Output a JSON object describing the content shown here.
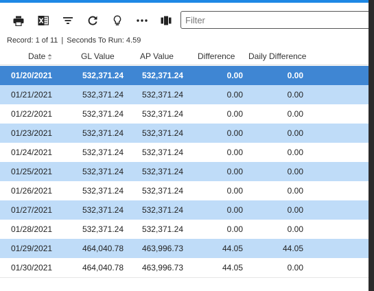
{
  "toolbar": {
    "buttons": [
      {
        "name": "print-button",
        "icon": "printer-icon"
      },
      {
        "name": "export-excel-button",
        "icon": "excel-icon"
      },
      {
        "name": "filter-button",
        "icon": "filter-lines-icon"
      },
      {
        "name": "refresh-button",
        "icon": "refresh-icon"
      },
      {
        "name": "tip-button",
        "icon": "lightbulb-icon"
      },
      {
        "name": "more-button",
        "icon": "more-horizontal-icon"
      },
      {
        "name": "columns-button",
        "icon": "columns-icon"
      }
    ],
    "filter_placeholder": "Filter"
  },
  "status": {
    "record_label": "Record: 1 of 11",
    "separator": "|",
    "run_label": "Seconds To Run: 4.59"
  },
  "columns": {
    "date": "Date",
    "gl_value": "GL Value",
    "ap_value": "AP Value",
    "difference": "Difference",
    "daily_difference": "Daily Difference"
  },
  "rows": [
    {
      "date": "01/20/2021",
      "gl": "532,371.24",
      "ap": "532,371.24",
      "diff": "0.00",
      "daily": "0.00"
    },
    {
      "date": "01/21/2021",
      "gl": "532,371.24",
      "ap": "532,371.24",
      "diff": "0.00",
      "daily": "0.00"
    },
    {
      "date": "01/22/2021",
      "gl": "532,371.24",
      "ap": "532,371.24",
      "diff": "0.00",
      "daily": "0.00"
    },
    {
      "date": "01/23/2021",
      "gl": "532,371.24",
      "ap": "532,371.24",
      "diff": "0.00",
      "daily": "0.00"
    },
    {
      "date": "01/24/2021",
      "gl": "532,371.24",
      "ap": "532,371.24",
      "diff": "0.00",
      "daily": "0.00"
    },
    {
      "date": "01/25/2021",
      "gl": "532,371.24",
      "ap": "532,371.24",
      "diff": "0.00",
      "daily": "0.00"
    },
    {
      "date": "01/26/2021",
      "gl": "532,371.24",
      "ap": "532,371.24",
      "diff": "0.00",
      "daily": "0.00"
    },
    {
      "date": "01/27/2021",
      "gl": "532,371.24",
      "ap": "532,371.24",
      "diff": "0.00",
      "daily": "0.00"
    },
    {
      "date": "01/28/2021",
      "gl": "532,371.24",
      "ap": "532,371.24",
      "diff": "0.00",
      "daily": "0.00"
    },
    {
      "date": "01/29/2021",
      "gl": "464,040.78",
      "ap": "463,996.73",
      "diff": "44.05",
      "daily": "44.05"
    },
    {
      "date": "01/30/2021",
      "gl": "464,040.78",
      "ap": "463,996.73",
      "diff": "44.05",
      "daily": "0.00"
    }
  ],
  "colors": {
    "selected_row": "#3f86d3",
    "alt_row": "#bfdcf8",
    "accent": "#1e88e5"
  }
}
